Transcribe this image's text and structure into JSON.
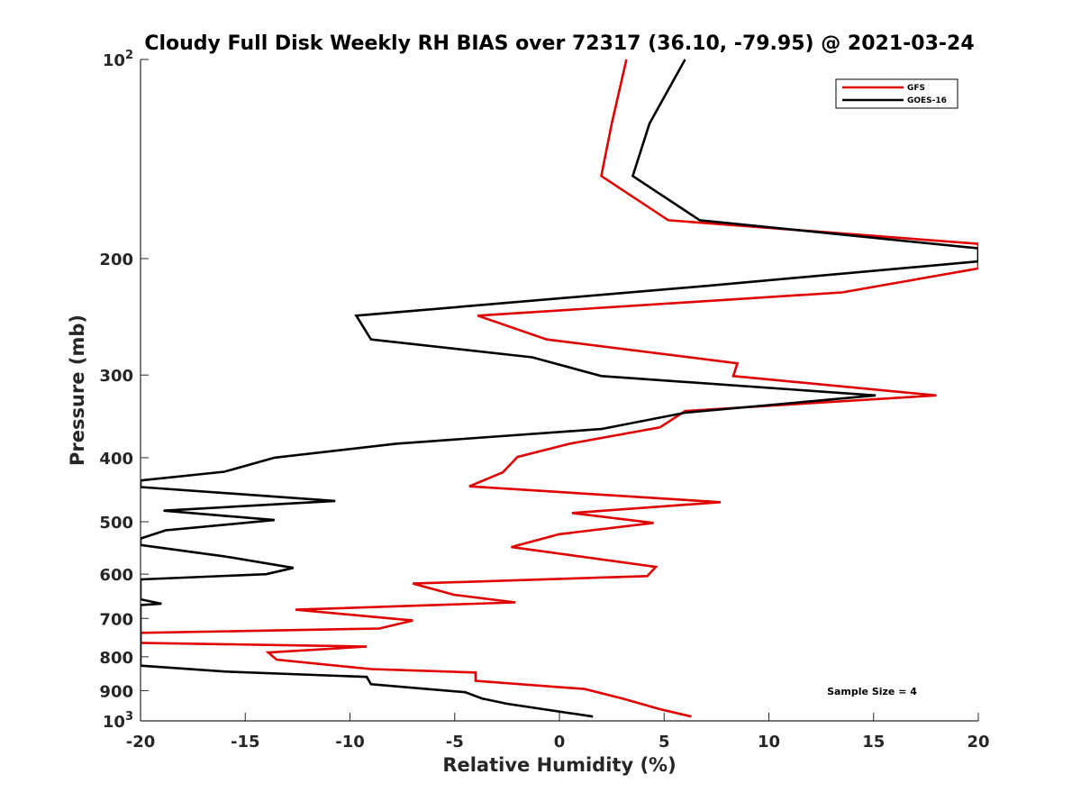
{
  "chart_data": {
    "type": "line",
    "title": "Cloudy Full Disk Weekly RH BIAS over 72317 (36.10, -79.95) @ 2021-03-24",
    "xlabel": "Relative Humidity (%)",
    "ylabel": "Pressure (mb)",
    "xlim": [
      -20,
      20
    ],
    "ylim": [
      100,
      1000
    ],
    "y_scale": "log",
    "y_reversed": true,
    "grid": false,
    "legend_position": "top-right",
    "x_ticks": [
      "-20",
      "-15",
      "-10",
      "-5",
      "0",
      "5",
      "10",
      "15",
      "20"
    ],
    "y_ticks": [
      {
        "label": "10",
        "exp": "2",
        "value": 100
      },
      {
        "label": "200",
        "value": 200
      },
      {
        "label": "300",
        "value": 300
      },
      {
        "label": "400",
        "value": 400
      },
      {
        "label": "500",
        "value": 500
      },
      {
        "label": "600",
        "value": 600
      },
      {
        "label": "700",
        "value": 700
      },
      {
        "label": "800",
        "value": 800
      },
      {
        "label": "900",
        "value": 900
      },
      {
        "label": "10",
        "exp": "3",
        "value": 1000
      }
    ],
    "annotation": "Sample Size = 4",
    "series": [
      {
        "name": "GFS",
        "color": "#e00000",
        "points": [
          [
            3.2,
            100
          ],
          [
            2.5,
            125
          ],
          [
            2.0,
            150
          ],
          [
            5.2,
            175
          ],
          [
            20.0,
            190
          ],
          [
            20.0,
            207
          ],
          [
            13.5,
            225
          ],
          [
            -3.9,
            244
          ],
          [
            -0.6,
            265
          ],
          [
            8.5,
            288
          ],
          [
            8.3,
            301
          ],
          [
            18.0,
            322
          ],
          [
            6.0,
            340
          ],
          [
            4.8,
            360
          ],
          [
            0.5,
            381
          ],
          [
            -2.0,
            399
          ],
          [
            -2.7,
            421
          ],
          [
            -4.3,
            442
          ],
          [
            7.7,
            467
          ],
          [
            0.6,
            485
          ],
          [
            4.5,
            502
          ],
          [
            0.0,
            522
          ],
          [
            -2.3,
            546
          ],
          [
            4.6,
            585
          ],
          [
            4.2,
            604
          ],
          [
            -7.0,
            620
          ],
          [
            -5.0,
            645
          ],
          [
            -2.1,
            662
          ],
          [
            -12.6,
            679
          ],
          [
            -7.0,
            705
          ],
          [
            -8.6,
            725
          ],
          [
            -20.0,
            736
          ],
          [
            -20.0,
            762
          ],
          [
            -9.2,
            772
          ],
          [
            -13.9,
            788
          ],
          [
            -13.5,
            808
          ],
          [
            -9.0,
            835
          ],
          [
            -4.0,
            845
          ],
          [
            -4.0,
            870
          ],
          [
            1.2,
            895
          ],
          [
            3.0,
            925
          ],
          [
            4.8,
            960
          ],
          [
            6.3,
            985
          ]
        ]
      },
      {
        "name": "GOES-16",
        "color": "#000000",
        "points": [
          [
            6.0,
            100
          ],
          [
            4.3,
            125
          ],
          [
            3.5,
            150
          ],
          [
            6.7,
            175
          ],
          [
            20.0,
            193
          ],
          [
            20.0,
            202
          ],
          [
            7.0,
            220
          ],
          [
            -9.7,
            244
          ],
          [
            -9.0,
            265
          ],
          [
            -1.3,
            282
          ],
          [
            2.0,
            301
          ],
          [
            15.1,
            322
          ],
          [
            6.0,
            342
          ],
          [
            2.0,
            362
          ],
          [
            -7.8,
            381
          ],
          [
            -13.6,
            400
          ],
          [
            -16.0,
            420
          ],
          [
            -20.0,
            433
          ],
          [
            -20.0,
            443
          ],
          [
            -10.7,
            465
          ],
          [
            -18.9,
            481
          ],
          [
            -13.6,
            497
          ],
          [
            -18.8,
            515
          ],
          [
            -20.0,
            530
          ],
          [
            -20.0,
            542
          ],
          [
            -16.0,
            564
          ],
          [
            -12.7,
            587
          ],
          [
            -14.0,
            600
          ],
          [
            -20.0,
            611
          ],
          [
            -20.0,
            655
          ],
          [
            -19.0,
            665
          ],
          [
            -20.0,
            668
          ],
          [
            -20.0,
            825
          ],
          [
            -16.0,
            842
          ],
          [
            -9.2,
            858
          ],
          [
            -9.0,
            880
          ],
          [
            -4.5,
            905
          ],
          [
            -3.7,
            925
          ],
          [
            -2.5,
            942
          ],
          [
            1.6,
            985
          ]
        ]
      }
    ]
  }
}
